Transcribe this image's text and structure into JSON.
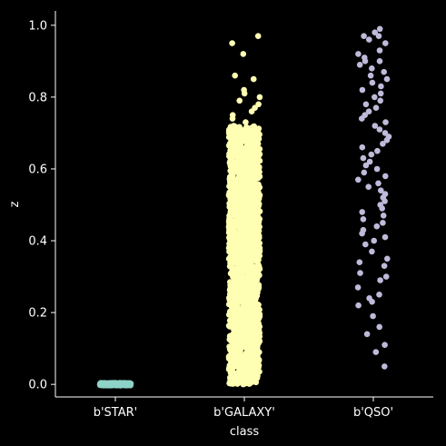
{
  "chart_data": {
    "type": "scatter",
    "subtype": "strip",
    "title": "",
    "xlabel": "class",
    "ylabel": "z",
    "categories": [
      "b'STAR'",
      "b'GALAXY'",
      "b'QSO'"
    ],
    "ylim": [
      -0.035,
      1.04
    ],
    "yticks": [
      0.0,
      0.2,
      0.4,
      0.6,
      0.8,
      1.0
    ],
    "ytick_labels": [
      "0.0",
      "0.2",
      "0.4",
      "0.6",
      "0.8",
      "1.0"
    ],
    "grid": false,
    "legend": "none",
    "series": [
      {
        "category": "b'STAR'",
        "color": "#8dd3c7",
        "z_range": [
          -0.003,
          0.004
        ],
        "points": [
          0.0,
          0.001,
          -0.001,
          0.002,
          0.0,
          0.001,
          0.003,
          -0.002,
          0.0,
          0.002
        ]
      },
      {
        "category": "b'GALAXY'",
        "color": "#ffffb3",
        "z_range": [
          0.0,
          0.72
        ],
        "points": [
          0.97,
          0.95,
          0.92,
          0.86,
          0.85,
          0.82,
          0.81,
          0.8,
          0.79,
          0.78,
          0.77,
          0.76,
          0.75,
          0.74,
          0.73
        ]
      },
      {
        "category": "b'QSO'",
        "color": "#bebada",
        "points": [
          0.99,
          0.98,
          0.97,
          0.97,
          0.96,
          0.95,
          0.93,
          0.92,
          0.91,
          0.9,
          0.9,
          0.89,
          0.88,
          0.87,
          0.86,
          0.85,
          0.84,
          0.83,
          0.82,
          0.81,
          0.8,
          0.79,
          0.78,
          0.77,
          0.76,
          0.75,
          0.74,
          0.73,
          0.72,
          0.71,
          0.7,
          0.69,
          0.68,
          0.67,
          0.66,
          0.65,
          0.64,
          0.63,
          0.62,
          0.61,
          0.6,
          0.59,
          0.58,
          0.57,
          0.56,
          0.55,
          0.54,
          0.53,
          0.52,
          0.51,
          0.5,
          0.49,
          0.48,
          0.47,
          0.46,
          0.45,
          0.44,
          0.43,
          0.42,
          0.41,
          0.4,
          0.39,
          0.37,
          0.35,
          0.34,
          0.33,
          0.31,
          0.3,
          0.29,
          0.27,
          0.25,
          0.24,
          0.23,
          0.22,
          0.19,
          0.16,
          0.14,
          0.11,
          0.09,
          0.05
        ]
      }
    ]
  }
}
